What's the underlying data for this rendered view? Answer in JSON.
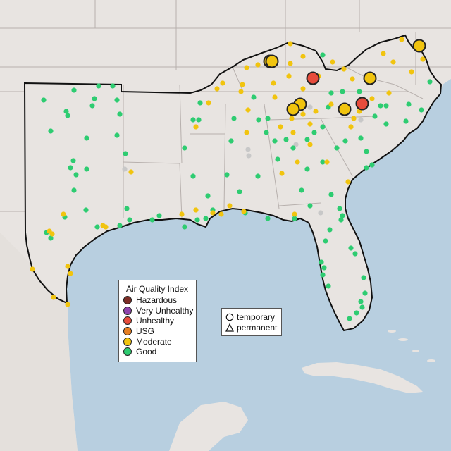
{
  "legend_aqi": {
    "title": "Air Quality Index",
    "items": [
      {
        "label": "Hazardous",
        "color": "#7b2d26"
      },
      {
        "label": "Very Unhealthy",
        "color": "#8e44ad"
      },
      {
        "label": "Unhealthy",
        "color": "#e74c3c"
      },
      {
        "label": "USG",
        "color": "#e67e22"
      },
      {
        "label": "Moderate",
        "color": "#f1c40f"
      },
      {
        "label": "Good",
        "color": "#2ecc71"
      }
    ]
  },
  "legend_type": {
    "items": [
      {
        "label": "temporary",
        "icon": "circle-icon"
      },
      {
        "label": "permanent",
        "icon": "triangle-icon"
      }
    ]
  },
  "colors": {
    "water": "#b8cfe0",
    "land": "#e8e4e1",
    "region_fill": "#efebe8",
    "state_border": "#b7b0ad",
    "region_border": "#111111",
    "no_data_monitor": "#c8c8c8"
  }
}
